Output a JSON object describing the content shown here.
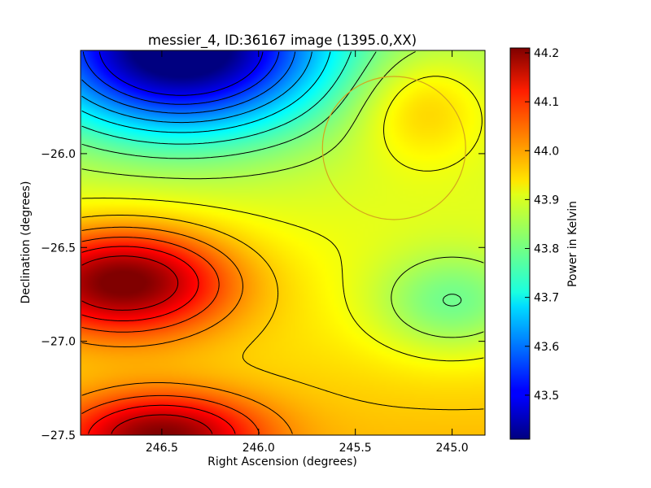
{
  "chart_data": {
    "type": "heatmap",
    "title": "messier_4, ID:36167 image (1395.0,XX)",
    "xlabel": "Right Ascension (degrees)",
    "ylabel": "Declination (degrees)",
    "xlim": [
      246.92,
      244.83
    ],
    "ylim": [
      -27.5,
      -25.45
    ],
    "x_ticks": [
      {
        "value": 246.5,
        "label": "246.5"
      },
      {
        "value": 246.0,
        "label": "246.0"
      },
      {
        "value": 245.5,
        "label": "245.5"
      },
      {
        "value": 245.0,
        "label": "245.0"
      }
    ],
    "y_ticks": [
      {
        "value": -26.0,
        "label": "−26.0"
      },
      {
        "value": -26.5,
        "label": "−26.5"
      },
      {
        "value": -27.0,
        "label": "−27.0"
      },
      {
        "value": -27.5,
        "label": "−27.5"
      }
    ],
    "colorbar": {
      "label": "Power in Kelvin",
      "range": [
        43.41,
        44.21
      ],
      "colormap": "jet",
      "ticks": [
        {
          "value": 43.5,
          "label": "43.5"
        },
        {
          "value": 43.6,
          "label": "43.6"
        },
        {
          "value": 43.7,
          "label": "43.7"
        },
        {
          "value": 43.8,
          "label": "43.8"
        },
        {
          "value": 43.9,
          "label": "43.9"
        },
        {
          "value": 44.0,
          "label": "44.0"
        },
        {
          "value": 44.1,
          "label": "44.1"
        },
        {
          "value": 44.2,
          "label": "44.2"
        }
      ]
    },
    "contour_levels": [
      43.5,
      43.55,
      43.6,
      43.65,
      43.7,
      43.75,
      43.8,
      43.85,
      43.9,
      43.95,
      44.0,
      44.05,
      44.1,
      44.15
    ],
    "features": [
      {
        "kind": "maximum",
        "ra": 246.7,
        "dec": -26.68,
        "value": 44.21
      },
      {
        "kind": "maximum",
        "ra": 246.5,
        "dec": -27.5,
        "value": 44.15
      },
      {
        "kind": "minimum",
        "ra": 246.4,
        "dec": -25.45,
        "value": 43.41
      },
      {
        "kind": "maximum",
        "ra": 245.15,
        "dec": -25.75,
        "value": 43.99
      },
      {
        "kind": "minimum",
        "ra": 245.0,
        "dec": -26.8,
        "value": 43.78
      }
    ],
    "circle_marker": {
      "ra": 245.3,
      "dec": -25.97,
      "radius_deg": 0.37,
      "color": "#d4a51e"
    },
    "grid": false
  }
}
